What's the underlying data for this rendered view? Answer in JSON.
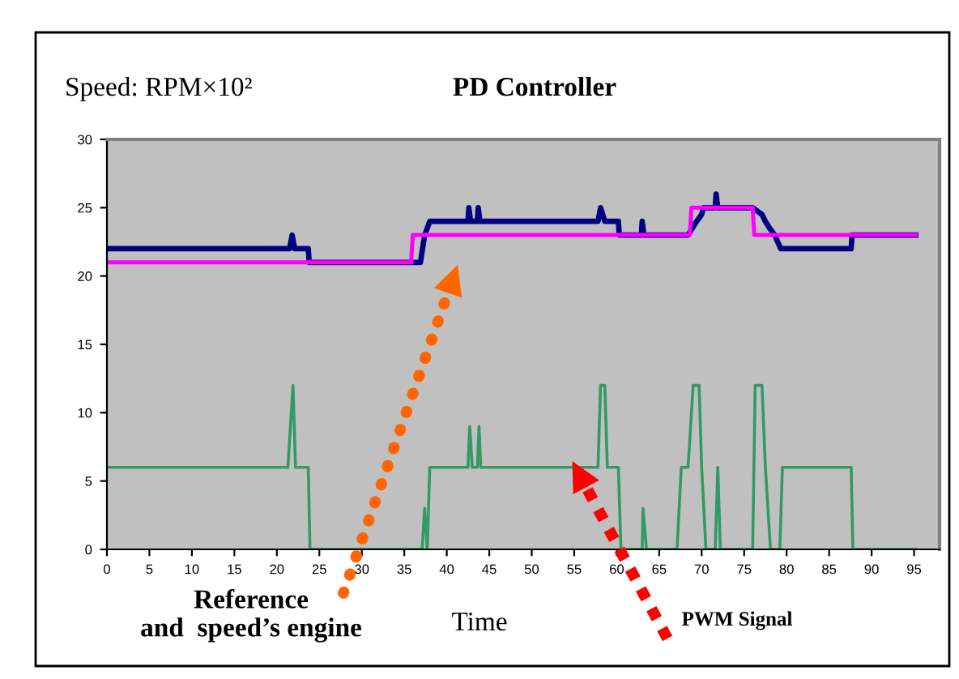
{
  "chart_data": {
    "type": "line",
    "title": "PD Controller",
    "subtitle": "Speed: RPM×10²",
    "xlabel": "Time",
    "xlim": [
      0,
      98
    ],
    "ylim": [
      0,
      30
    ],
    "xticks": [
      0,
      5,
      10,
      15,
      20,
      25,
      30,
      35,
      40,
      45,
      50,
      55,
      60,
      65,
      70,
      75,
      80,
      85,
      90,
      95
    ],
    "yticks": [
      0,
      5,
      10,
      15,
      20,
      25,
      30
    ],
    "marker": "none",
    "line_style": "solid",
    "series": [
      {
        "color": "#000080",
        "x": [
          0,
          21.5,
          21.8,
          22.1,
          23.7,
          23.8,
          36.9,
          37.4,
          38,
          42.5,
          42.6,
          42.8,
          43.6,
          43.7,
          43.9,
          57.8,
          58.1,
          58.6,
          60.2,
          60.3,
          62.9,
          63,
          63.2,
          68.4,
          68.9,
          69.4,
          70,
          70.2,
          71.6,
          71.7,
          71.9,
          76,
          77.1,
          77.5,
          78,
          78.6,
          79.3,
          87.6,
          87.7,
          95.2
        ],
        "values": [
          22,
          22,
          23,
          22,
          22,
          21,
          21,
          23,
          24,
          24,
          25,
          24,
          24,
          25,
          24,
          24,
          25,
          24,
          24,
          23,
          23,
          24,
          23,
          23,
          23.5,
          24,
          24.5,
          25,
          25,
          26,
          25,
          25,
          24.5,
          24,
          23.5,
          23,
          22,
          22,
          23,
          23
        ]
      },
      {
        "color": "#ff00ff",
        "x": [
          0,
          35.8,
          36,
          68.6,
          68.8,
          76,
          76.2,
          95.2
        ],
        "values": [
          21,
          21,
          23,
          23,
          25,
          25,
          23,
          23
        ]
      },
      {
        "color": "#339966",
        "x": [
          0,
          21.3,
          21.9,
          22.2,
          23.7,
          23.9,
          37.1,
          37.4,
          37.7,
          38,
          42.5,
          42.7,
          43,
          43.6,
          43.8,
          44,
          57.8,
          58.1,
          58.6,
          58.9,
          60.2,
          60.5,
          63,
          63.1,
          63.5,
          67.1,
          67.6,
          68.4,
          69,
          69.7,
          70,
          70.5,
          71.6,
          71.9,
          72.2,
          76,
          76.3,
          77.1,
          77.5,
          78.1,
          79.2,
          79.5,
          87.6,
          87.8,
          95.2
        ],
        "values": [
          6,
          6,
          12,
          6,
          6,
          0,
          0,
          3,
          0,
          6,
          6,
          9,
          6,
          6,
          9,
          6,
          6,
          12,
          12,
          6,
          6,
          0,
          0,
          3,
          0,
          0,
          6,
          6,
          12,
          12,
          6,
          0,
          0,
          6,
          0,
          0,
          12,
          12,
          6,
          0,
          0,
          6,
          6,
          0,
          0
        ]
      }
    ],
    "annotations": [
      "Reference\nand  speed’s engine",
      "PWM Signal"
    ]
  }
}
